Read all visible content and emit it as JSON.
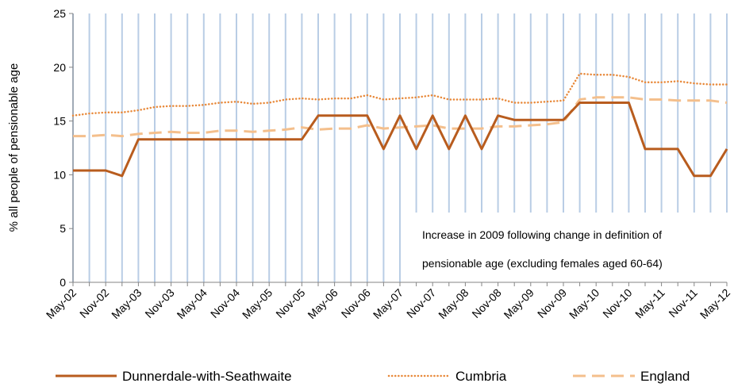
{
  "chart_data": {
    "type": "line",
    "title": "",
    "xlabel": "",
    "ylabel": "% all people of pensionable age",
    "ylim": [
      0,
      25
    ],
    "yticks": [
      0,
      5,
      10,
      15,
      20,
      25
    ],
    "grid": "vertical",
    "legend_position": "bottom",
    "x": [
      "May-02",
      "Aug-02",
      "Nov-02",
      "Feb-03",
      "May-03",
      "Aug-03",
      "Nov-03",
      "Feb-04",
      "May-04",
      "Aug-04",
      "Nov-04",
      "Feb-05",
      "May-05",
      "Aug-05",
      "Nov-05",
      "Feb-06",
      "May-06",
      "Aug-06",
      "Nov-06",
      "Feb-07",
      "May-07",
      "Aug-07",
      "Nov-07",
      "Feb-08",
      "May-08",
      "Aug-08",
      "Nov-08",
      "Feb-09",
      "May-09",
      "Aug-09",
      "Nov-09",
      "Feb-10",
      "May-10",
      "Aug-10",
      "Nov-10",
      "Feb-11",
      "May-11",
      "Aug-11",
      "Nov-11",
      "Feb-12",
      "May-12"
    ],
    "x_tick_labels": [
      "May-02",
      "Nov-02",
      "May-03",
      "Nov-03",
      "May-04",
      "Nov-04",
      "May-05",
      "Nov-05",
      "May-06",
      "Nov-06",
      "May-07",
      "Nov-07",
      "May-08",
      "Nov-08",
      "May-09",
      "Nov-09",
      "May-10",
      "Nov-10",
      "May-11",
      "Nov-11",
      "May-12"
    ],
    "series": [
      {
        "name": "Dunnerdale-with-Seathwaite",
        "color": "#b85c1e",
        "style": "solid",
        "values": [
          10.4,
          10.4,
          10.4,
          9.9,
          13.3,
          13.3,
          13.3,
          13.3,
          13.3,
          13.3,
          13.3,
          13.3,
          13.3,
          13.3,
          13.3,
          15.5,
          15.5,
          15.5,
          15.5,
          12.4,
          15.5,
          12.4,
          15.5,
          12.4,
          15.5,
          12.4,
          15.5,
          15.1,
          15.1,
          15.1,
          15.1,
          16.7,
          16.7,
          16.7,
          16.7,
          12.4,
          12.4,
          12.4,
          9.9,
          9.9,
          12.4
        ]
      },
      {
        "name": "Cumbria",
        "color": "#e8893a",
        "style": "dotted",
        "values": [
          15.5,
          15.7,
          15.8,
          15.8,
          16.0,
          16.3,
          16.4,
          16.4,
          16.5,
          16.7,
          16.8,
          16.6,
          16.7,
          17.0,
          17.1,
          17.0,
          17.1,
          17.1,
          17.4,
          17.0,
          17.1,
          17.2,
          17.4,
          17.0,
          17.0,
          17.0,
          17.1,
          16.7,
          16.7,
          16.8,
          16.9,
          19.4,
          19.3,
          19.3,
          19.1,
          18.6,
          18.6,
          18.7,
          18.5,
          18.4,
          18.4
        ]
      },
      {
        "name": "England",
        "color": "#f4bf8c",
        "style": "dashed",
        "values": [
          13.6,
          13.6,
          13.7,
          13.6,
          13.8,
          13.9,
          14.0,
          13.9,
          13.9,
          14.1,
          14.1,
          14.0,
          14.1,
          14.2,
          14.4,
          14.2,
          14.3,
          14.3,
          14.6,
          14.3,
          14.4,
          14.5,
          14.6,
          14.3,
          14.3,
          14.3,
          14.5,
          14.5,
          14.6,
          14.7,
          14.9,
          17.0,
          17.2,
          17.2,
          17.2,
          17.0,
          17.0,
          16.9,
          16.9,
          16.9,
          16.7
        ]
      }
    ],
    "annotation": [
      "Increase in 2009 following change in definition of",
      "pensionable age (excluding females aged 60-64)"
    ]
  }
}
